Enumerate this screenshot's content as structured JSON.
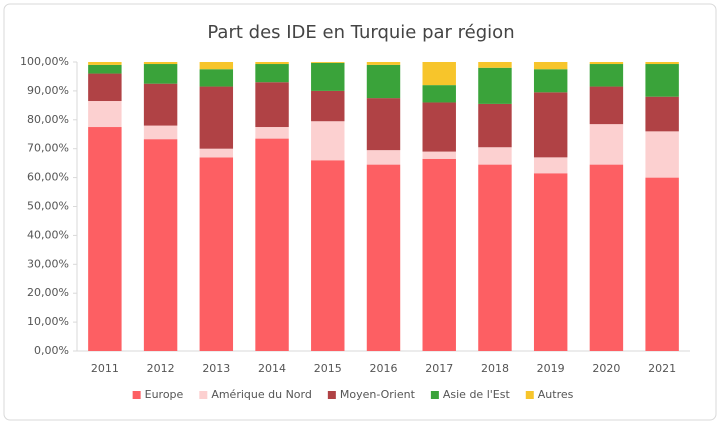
{
  "chart_data": {
    "type": "stacked_bar",
    "title": "Part des IDE en Turquie par région",
    "categories": [
      "2011",
      "2012",
      "2013",
      "2014",
      "2015",
      "2016",
      "2017",
      "2018",
      "2019",
      "2020",
      "2021"
    ],
    "series": [
      {
        "name": "Europe",
        "color": "#fd5f63",
        "values": [
          77.5,
          73.3,
          67,
          73.5,
          66,
          64.5,
          66.5,
          64.5,
          61.5,
          64.5,
          60
        ]
      },
      {
        "name": "Amérique du Nord",
        "color": "#fcd0d0",
        "values": [
          9,
          4.7,
          3,
          4,
          13.5,
          5,
          2.5,
          6,
          5.5,
          14,
          16
        ]
      },
      {
        "name": "Moyen-Orient",
        "color": "#b04245",
        "values": [
          9.5,
          14.5,
          21.5,
          15.5,
          10.5,
          18,
          17,
          15,
          22.5,
          13,
          12
        ]
      },
      {
        "name": "Asie de l'Est",
        "color": "#3aa33a",
        "values": [
          3,
          6.8,
          6,
          6.3,
          9.7,
          11.5,
          6,
          12.5,
          8,
          7.8,
          11.3
        ]
      },
      {
        "name": "Autres",
        "color": "#f7c52b",
        "values": [
          1,
          0.7,
          2.5,
          0.7,
          0.3,
          1,
          8,
          2,
          2.5,
          0.7,
          0.7
        ]
      }
    ],
    "ylim": [
      0,
      100
    ],
    "yticks": [
      {
        "value": 0,
        "label": "0,00%"
      },
      {
        "value": 10,
        "label": "10,00%"
      },
      {
        "value": 20,
        "label": "20,00%"
      },
      {
        "value": 30,
        "label": "30,00%"
      },
      {
        "value": 40,
        "label": "40,00%"
      },
      {
        "value": 50,
        "label": "50,00%"
      },
      {
        "value": 60,
        "label": "60,00%"
      },
      {
        "value": 70,
        "label": "70,00%"
      },
      {
        "value": 80,
        "label": "80,00%"
      },
      {
        "value": 90,
        "label": "90,00%"
      },
      {
        "value": 100,
        "label": "100,00%"
      }
    ],
    "legend": "bottom"
  }
}
